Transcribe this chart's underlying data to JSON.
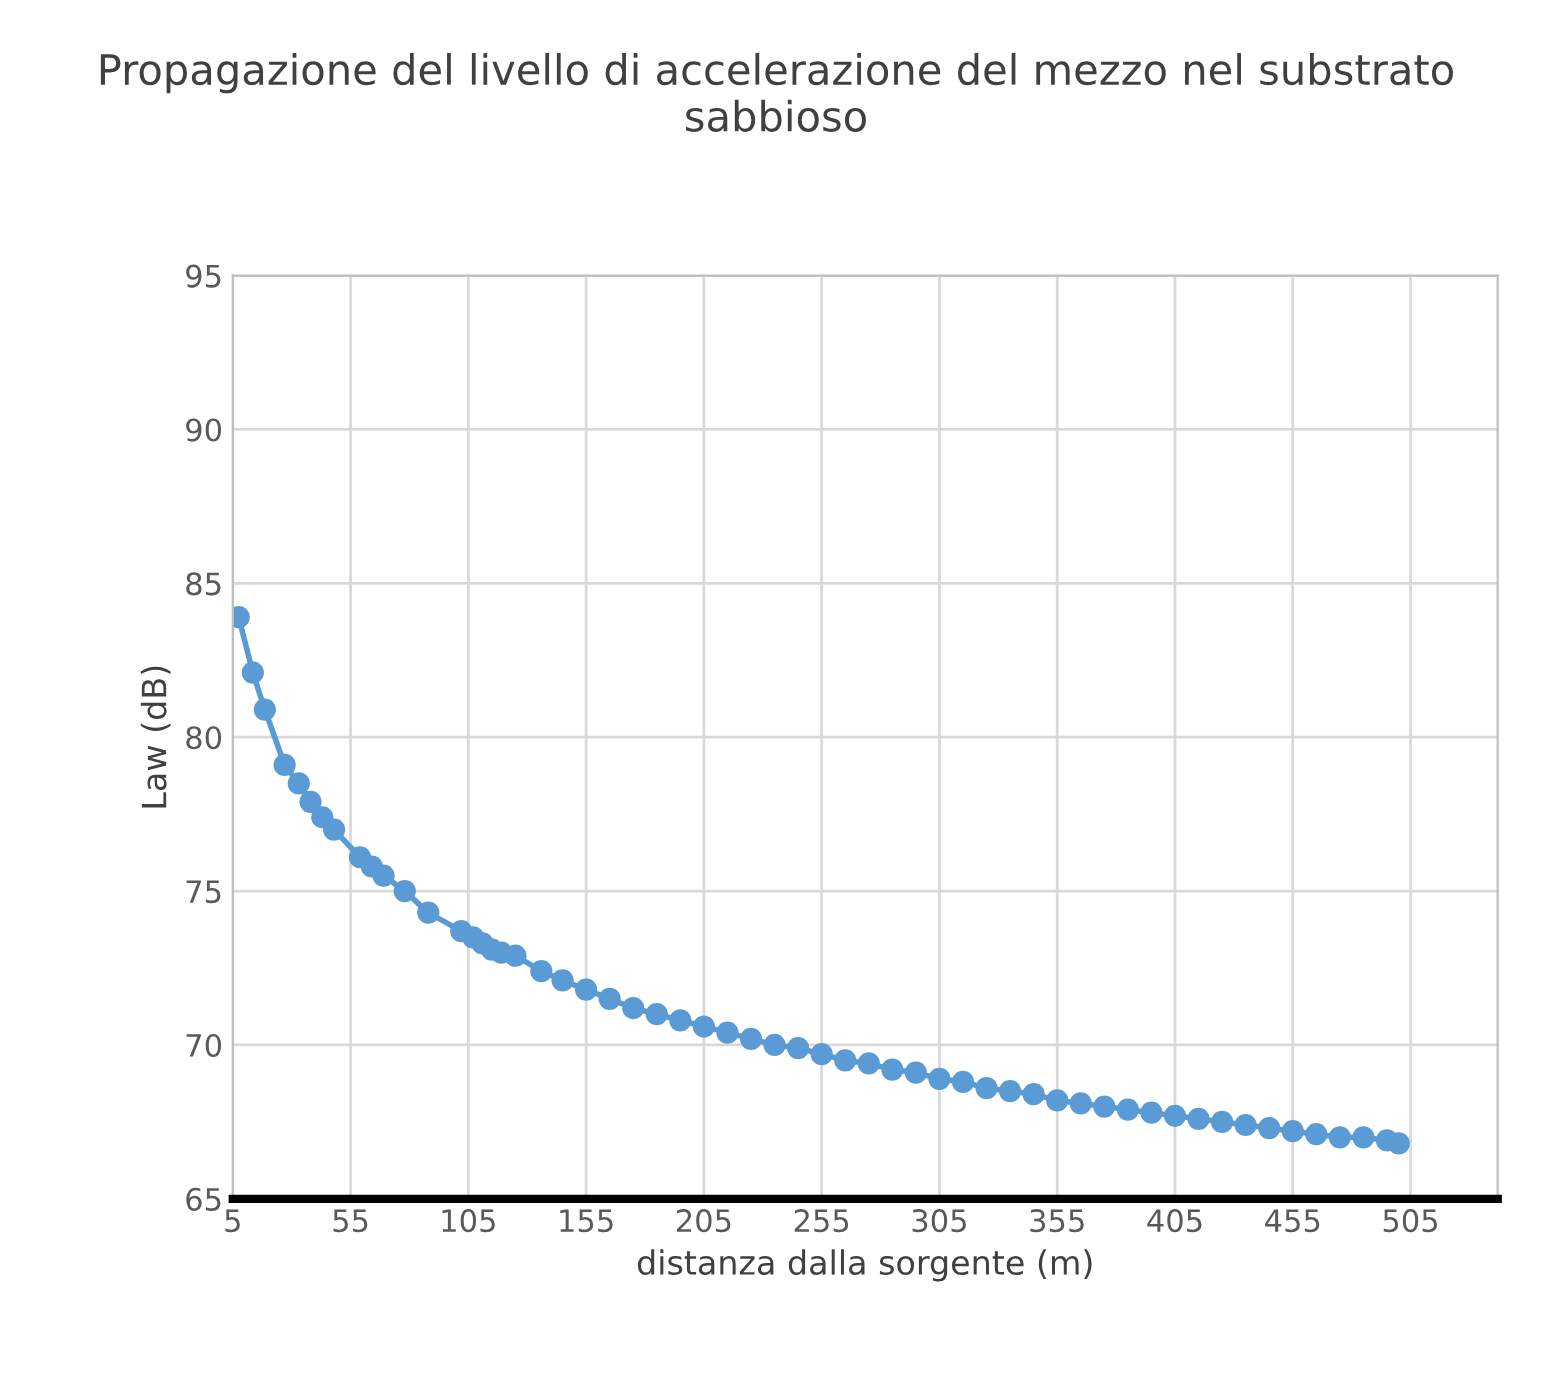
{
  "chart_data": {
    "type": "line",
    "title": "Propagazione del livello di accelerazione del mezzo nel substrato sabbioso",
    "xlabel": "distanza dalla sorgente (m)",
    "ylabel": "Law (dB)",
    "xlim": [
      5,
      542
    ],
    "xticks": [
      5,
      55,
      105,
      155,
      205,
      255,
      305,
      355,
      405,
      455,
      505
    ],
    "ylim": [
      65,
      95
    ],
    "yticks": [
      65,
      70,
      75,
      80,
      85,
      90,
      95
    ],
    "grid": true,
    "marker": "circle",
    "line_style": "solid",
    "series": [
      {
        "color": "#5b9bd5",
        "x": [
          7.5,
          13.5,
          18.6,
          27,
          33,
          38,
          43,
          48,
          59,
          64,
          69,
          78,
          88,
          102,
          107,
          111,
          115,
          119,
          125,
          136,
          145,
          155,
          165,
          175,
          185,
          195,
          205,
          215,
          225,
          235,
          245,
          255,
          265,
          275,
          285,
          295,
          305,
          315,
          325,
          335,
          345,
          355,
          365,
          375,
          385,
          395,
          405,
          415,
          425,
          435,
          445,
          455,
          465,
          475,
          485,
          495,
          500
        ],
        "values": [
          83.9,
          82.1,
          80.9,
          79.1,
          78.5,
          77.9,
          77.4,
          77.0,
          76.1,
          75.8,
          75.5,
          75.0,
          74.3,
          73.7,
          73.5,
          73.3,
          73.1,
          73.0,
          72.9,
          72.4,
          72.1,
          71.8,
          71.5,
          71.2,
          71.0,
          70.8,
          70.6,
          70.4,
          70.2,
          70.0,
          69.9,
          69.7,
          69.5,
          69.4,
          69.2,
          69.1,
          68.9,
          68.8,
          68.6,
          68.5,
          68.4,
          68.2,
          68.1,
          68.0,
          67.9,
          67.8,
          67.7,
          67.6,
          67.5,
          67.4,
          67.3,
          67.2,
          67.1,
          67.0,
          67.0,
          66.9,
          66.8
        ]
      }
    ]
  }
}
